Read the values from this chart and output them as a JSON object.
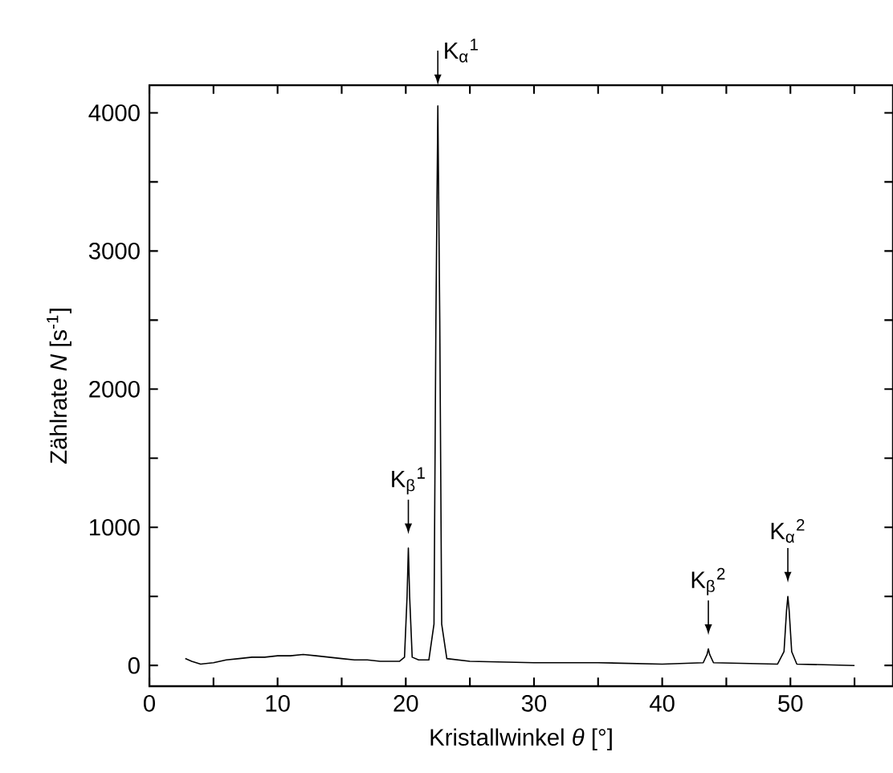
{
  "chart_data": {
    "type": "line",
    "xlabel": "Kristallwinkel *θ* [°]",
    "ylabel": "Zählrate *N* [s$^{-1}$]",
    "xlim": [
      0,
      58
    ],
    "ylim": [
      -150,
      4200
    ],
    "xticks": [
      0,
      {
        "value": 5,
        "label": null
      },
      10,
      {
        "value": 15,
        "label": null
      },
      20,
      {
        "value": 25,
        "label": null
      },
      30,
      {
        "value": 35,
        "label": null
      },
      40,
      {
        "value": 45,
        "label": null
      },
      50,
      {
        "value": 55,
        "label": null
      }
    ],
    "yticks": [
      0,
      {
        "value": 500,
        "label": null
      },
      1000,
      {
        "value": 1500,
        "label": null
      },
      2000,
      {
        "value": 2500,
        "label": null
      },
      3000,
      {
        "value": 3500,
        "label": null
      },
      4000
    ],
    "grid": false,
    "marker": "none",
    "line_style": "solid",
    "series": [
      {
        "color": "#000000",
        "x": [
          2.8,
          3.3,
          4,
          5,
          6,
          7,
          8,
          9,
          10,
          11,
          12,
          13,
          14,
          15,
          16,
          17,
          18,
          19.5,
          19.9,
          20.1,
          20.2,
          20.3,
          20.5,
          21,
          21.8,
          22.2,
          22.35,
          22.5,
          22.65,
          22.8,
          23.2,
          25,
          30,
          35,
          40,
          43.2,
          43.5,
          43.6,
          43.7,
          44,
          49,
          49.5,
          49.7,
          49.8,
          49.9,
          50.1,
          50.5,
          55
        ],
        "values": [
          50,
          30,
          10,
          20,
          40,
          50,
          60,
          60,
          70,
          70,
          80,
          70,
          60,
          50,
          40,
          40,
          30,
          30,
          60,
          500,
          850,
          500,
          60,
          40,
          40,
          300,
          2500,
          4050,
          2500,
          300,
          50,
          30,
          20,
          20,
          10,
          20,
          80,
          120,
          80,
          20,
          10,
          100,
          400,
          500,
          400,
          100,
          10,
          0
        ]
      }
    ],
    "annotations": [
      {
        "text": "K$_{β}$$^{1}$",
        "x": 20.2,
        "y": 850
      },
      {
        "text": "K$_{α}$$^{1}$",
        "x": 22.5,
        "y": 4050
      },
      {
        "text": "K$_{β}$$^{2}$",
        "x": 43.6,
        "y": 120
      },
      {
        "text": "K$_{α}$$^{2}$",
        "x": 49.8,
        "y": 500
      }
    ]
  }
}
